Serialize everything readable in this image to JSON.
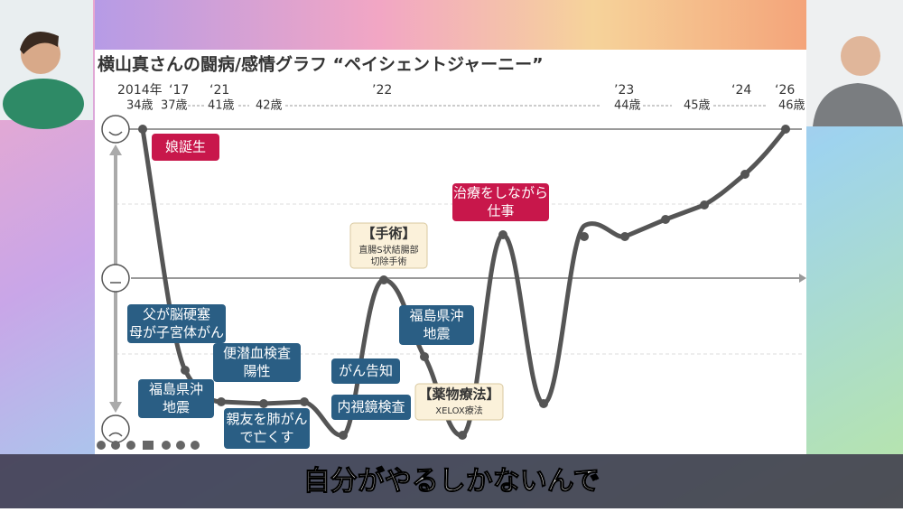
{
  "slide": {
    "title": "横山真さんの闘病/感情グラフ “ペイシェントジャーニー”",
    "years": [
      "2014年",
      "‘17",
      "‘21",
      "’22",
      "’23",
      "‘24",
      "‘26"
    ],
    "ages": [
      "34歳",
      "37歳",
      "41歳",
      "42歳",
      "44歳",
      "45歳",
      "46歳"
    ],
    "annotations": [
      {
        "lines": [
          "娘誕生"
        ]
      },
      {
        "lines": [
          "父が脳硬塞",
          "母が子宮体がん"
        ]
      },
      {
        "lines": [
          "福島県沖",
          "地震"
        ]
      },
      {
        "lines": [
          "便潜血検査",
          "陽性"
        ]
      },
      {
        "lines": [
          "親友を肺がん",
          "で亡くす"
        ]
      },
      {
        "lines": [
          "がん告知"
        ]
      },
      {
        "lines": [
          "内視鏡検査"
        ]
      },
      {
        "lines": [
          "【手術】",
          "直腸S状結腸部",
          "切除手術"
        ]
      },
      {
        "lines": [
          "福島県沖",
          "地震"
        ]
      },
      {
        "lines": [
          "【薬物療法】",
          "XELOX療法"
        ]
      },
      {
        "lines": [
          "治療をしながら",
          "仕事"
        ]
      }
    ]
  },
  "subtitle": "自分がやるしかないんで"
}
